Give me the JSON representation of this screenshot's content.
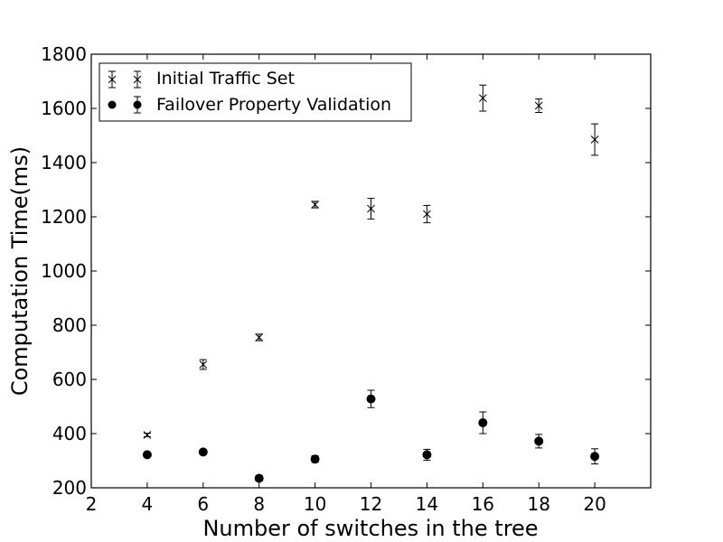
{
  "chart_data": {
    "type": "scatter",
    "xlabel": "Number of switches in the tree",
    "ylabel": "Computation Time(ms)",
    "xlim": [
      2,
      22
    ],
    "ylim": [
      200,
      1800
    ],
    "xticks": [
      2,
      4,
      6,
      8,
      10,
      12,
      14,
      16,
      18,
      20
    ],
    "yticks": [
      200,
      400,
      600,
      800,
      1000,
      1200,
      1400,
      1600,
      1800
    ],
    "grid": false,
    "legend_position": "upper-left",
    "series": [
      {
        "name": "Initial Traffic Set",
        "marker": "x",
        "color": "#000000",
        "x": [
          4,
          6,
          8,
          10,
          12,
          14,
          16,
          18,
          20
        ],
        "y": [
          395,
          655,
          755,
          1245,
          1230,
          1210,
          1638,
          1610,
          1485
        ],
        "error": [
          6,
          18,
          12,
          12,
          38,
          32,
          48,
          25,
          58
        ]
      },
      {
        "name": "Failover Property Validation",
        "marker": "o",
        "color": "#000000",
        "x": [
          4,
          6,
          8,
          10,
          12,
          14,
          16,
          18,
          20
        ],
        "y": [
          322,
          332,
          235,
          306,
          528,
          322,
          440,
          372,
          316
        ],
        "error": [
          5,
          6,
          10,
          12,
          32,
          20,
          40,
          25,
          28
        ]
      }
    ]
  }
}
